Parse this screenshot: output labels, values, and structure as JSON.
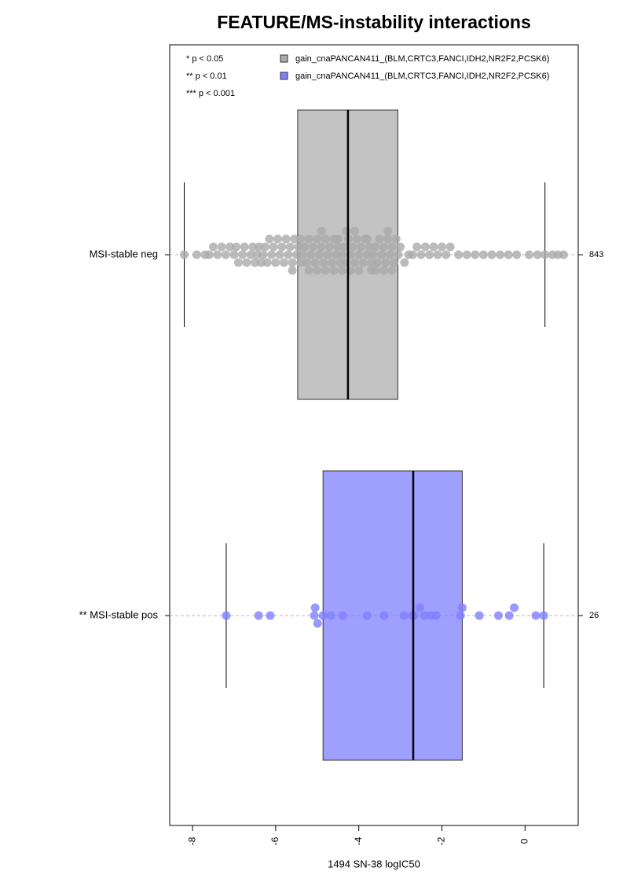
{
  "chart_data": {
    "type": "box-swarm",
    "title": "FEATURE/MS-instability interactions",
    "x_label": "1494 SN-38 logIC50",
    "significance_legend": [
      "* p < 0.05",
      "** p < 0.01",
      "*** p < 0.001"
    ],
    "categories": [
      "MSI-stable neg",
      "** MSI-stable pos"
    ],
    "xlim": [
      -8.55,
      1.28
    ],
    "xticks": [
      -8,
      -6,
      -4,
      -2,
      0
    ],
    "series": [
      {
        "name": "gain_cnaPANCAN411_(BLM,CRTC3,FANCI,IDH2,NR2F2,PCSK6)",
        "color": "#aaaaaa",
        "count": 843,
        "box": [
          -8.2,
          -5.47,
          -4.26,
          -3.06,
          0.48
        ],
        "values": [
          -8.2,
          -7.9,
          -7.7,
          -7.6,
          -7.5,
          -7.4,
          -7.3,
          -7.2,
          -7.1,
          -7.0,
          -6.95,
          -6.9,
          -6.8,
          -6.75,
          -6.7,
          -6.6,
          -6.55,
          -6.5,
          -6.45,
          -6.4,
          -6.35,
          -6.3,
          -6.25,
          -6.2,
          -6.15,
          -6.1,
          -6.05,
          -6.0,
          -5.95,
          -5.9,
          -5.85,
          -5.8,
          -5.75,
          -5.7,
          -5.65,
          -5.6,
          -5.55,
          -5.5,
          -5.45,
          -5.4,
          -5.35,
          -5.3,
          -5.25,
          -5.2,
          -5.15,
          -5.1,
          -5.05,
          -5.0,
          -4.95,
          -4.9,
          -4.85,
          -4.8,
          -4.75,
          -4.7,
          -4.65,
          -4.6,
          -4.55,
          -4.5,
          -4.45,
          -4.4,
          -4.35,
          -4.3,
          -4.25,
          -4.2,
          -4.15,
          -4.1,
          -4.05,
          -4.0,
          -3.95,
          -3.9,
          -3.85,
          -3.8,
          -3.75,
          -3.7,
          -3.65,
          -3.6,
          -3.55,
          -3.5,
          -3.45,
          -3.4,
          -3.35,
          -3.3,
          -3.25,
          -3.2,
          -3.15,
          -3.1,
          -3.05,
          -3.0,
          -2.9,
          -2.8,
          -2.7,
          -2.6,
          -2.5,
          -2.4,
          -2.3,
          -2.2,
          -2.1,
          -2.0,
          -1.9,
          -1.8,
          -1.6,
          -1.4,
          -1.2,
          -1.0,
          -0.8,
          -0.6,
          -0.4,
          -0.2,
          0.1,
          0.3,
          0.48,
          0.66,
          0.79,
          0.93,
          -5.6,
          -5.2,
          -5.0,
          -4.8,
          -4.6,
          -4.4,
          -4.3,
          -4.2,
          -4.0,
          -3.8,
          -3.6,
          -3.4,
          -3.2,
          -5.4,
          -4.9,
          -4.5,
          -4.1,
          -3.7,
          -3.3
        ]
      },
      {
        "name": "gain_cnaPANCAN411_(BLM,CRTC3,FANCI,IDH2,NR2F2,PCSK6)",
        "color": "#7f7fff",
        "count": 26,
        "box": [
          -7.19,
          -4.86,
          -2.69,
          -1.51,
          0.45
        ],
        "values": [
          -7.19,
          -6.41,
          -6.13,
          -5.07,
          -5.05,
          -4.99,
          -4.86,
          -4.67,
          -4.39,
          -3.8,
          -3.39,
          -2.91,
          -2.71,
          -2.67,
          -2.53,
          -2.42,
          -2.27,
          -2.14,
          -1.55,
          -1.51,
          -1.1,
          -0.64,
          -0.38,
          -0.26,
          0.26,
          0.45
        ]
      }
    ]
  }
}
